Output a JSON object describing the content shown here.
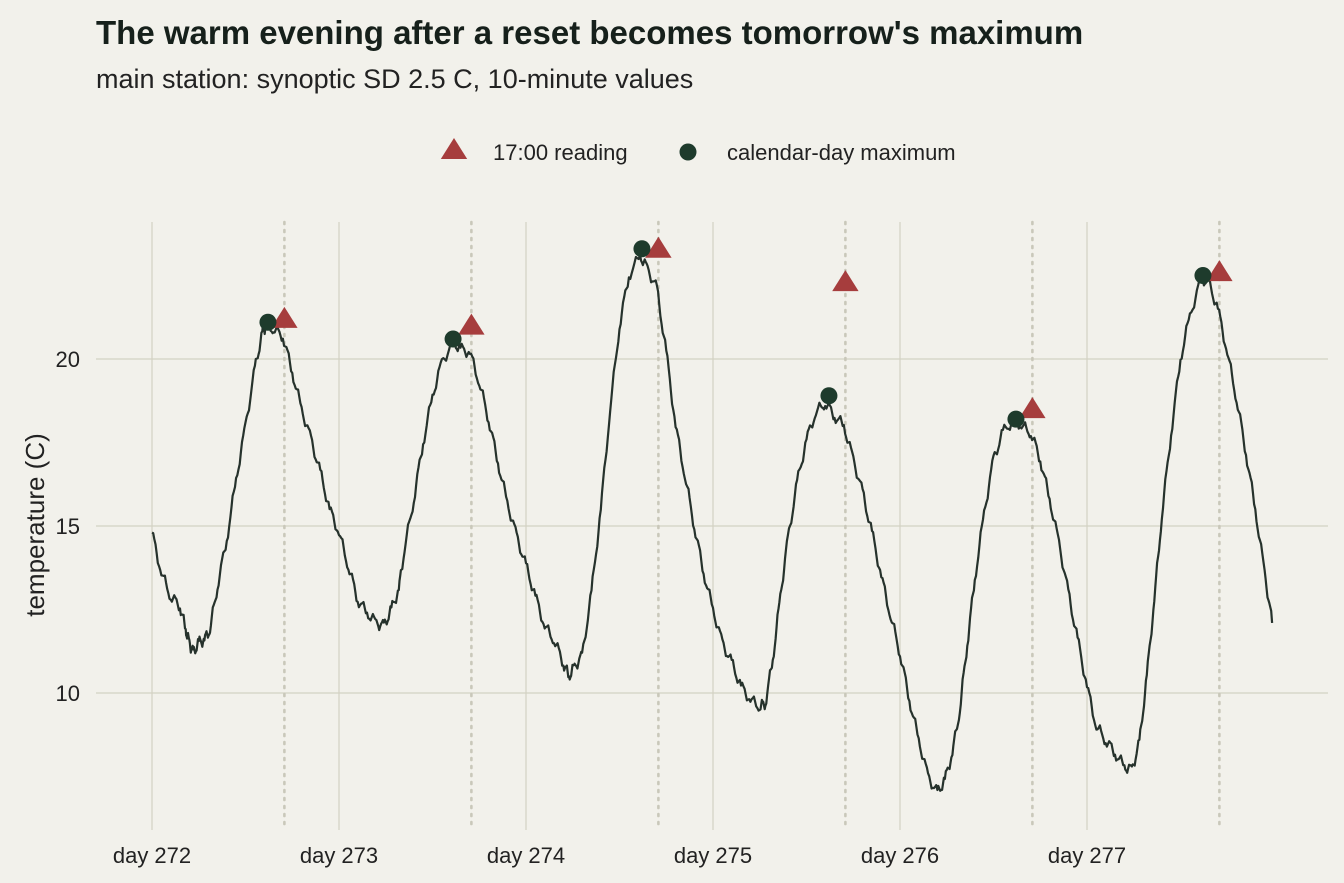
{
  "chart_data": {
    "type": "line",
    "title": "The warm evening after a reset becomes tomorrow's maximum",
    "subtitle": "main station: synoptic SD 2.5 C, 10-minute values",
    "xlabel": "",
    "ylabel": "temperature (C)",
    "xlim": [
      272,
      278.0
    ],
    "ylim": [
      6.0,
      24.0
    ],
    "x_ticks": [
      272,
      273,
      274,
      275,
      276,
      277
    ],
    "x_tick_labels": [
      "day 272",
      "day 273",
      "day 274",
      "day 275",
      "day 276",
      "day 277"
    ],
    "y_ticks": [
      10,
      15,
      20
    ],
    "y_tick_labels": [
      "10",
      "15",
      "20"
    ],
    "grid": true,
    "legend": {
      "position": "top-center",
      "entries": [
        "17:00 reading",
        "calendar-day maximum"
      ]
    },
    "reference_lines_x": [
      272.708,
      273.708,
      274.708,
      275.708,
      276.708,
      277.708
    ],
    "line_color": "#26322c",
    "series": [
      {
        "values": [
          [
            272.0,
            14.8
          ],
          [
            272.05,
            13.6
          ],
          [
            272.1,
            12.9
          ],
          [
            272.15,
            12.6
          ],
          [
            272.18,
            11.9
          ],
          [
            272.2,
            11.5
          ],
          [
            272.22,
            11.2
          ],
          [
            272.25,
            11.5
          ],
          [
            272.28,
            11.6
          ],
          [
            272.31,
            11.9
          ],
          [
            272.35,
            13.2
          ],
          [
            272.4,
            14.6
          ],
          [
            272.45,
            16.4
          ],
          [
            272.5,
            18.0
          ],
          [
            272.55,
            19.7
          ],
          [
            272.59,
            20.8
          ],
          [
            272.61,
            21.0
          ],
          [
            272.65,
            20.9
          ],
          [
            272.7,
            20.7
          ],
          [
            272.75,
            19.6
          ],
          [
            272.8,
            18.5
          ],
          [
            272.85,
            17.6
          ],
          [
            272.9,
            16.6
          ],
          [
            272.95,
            15.5
          ],
          [
            273.0,
            14.8
          ],
          [
            273.05,
            13.8
          ],
          [
            273.1,
            12.8
          ],
          [
            273.15,
            12.4
          ],
          [
            273.2,
            12.1
          ],
          [
            273.24,
            12.0
          ],
          [
            273.28,
            12.5
          ],
          [
            273.32,
            13.1
          ],
          [
            273.35,
            14.3
          ],
          [
            273.4,
            15.8
          ],
          [
            273.45,
            17.5
          ],
          [
            273.5,
            18.9
          ],
          [
            273.55,
            19.9
          ],
          [
            273.61,
            20.5
          ],
          [
            273.65,
            20.3
          ],
          [
            273.7,
            20.2
          ],
          [
            273.75,
            19.3
          ],
          [
            273.8,
            18.2
          ],
          [
            273.85,
            16.9
          ],
          [
            273.9,
            15.7
          ],
          [
            273.95,
            14.7
          ],
          [
            274.0,
            13.8
          ],
          [
            274.05,
            12.9
          ],
          [
            274.1,
            12.0
          ],
          [
            274.15,
            11.6
          ],
          [
            274.2,
            10.9
          ],
          [
            274.23,
            10.5
          ],
          [
            274.26,
            10.8
          ],
          [
            274.3,
            11.1
          ],
          [
            274.35,
            13.0
          ],
          [
            274.4,
            15.5
          ],
          [
            274.45,
            18.5
          ],
          [
            274.5,
            21.0
          ],
          [
            274.55,
            22.5
          ],
          [
            274.61,
            23.1
          ],
          [
            274.65,
            22.7
          ],
          [
            274.7,
            22.1
          ],
          [
            274.75,
            20.2
          ],
          [
            274.8,
            18.0
          ],
          [
            274.85,
            16.5
          ],
          [
            274.9,
            15.0
          ],
          [
            274.95,
            13.6
          ],
          [
            275.0,
            12.5
          ],
          [
            275.05,
            11.5
          ],
          [
            275.1,
            10.9
          ],
          [
            275.15,
            10.2
          ],
          [
            275.2,
            9.8
          ],
          [
            275.25,
            9.6
          ],
          [
            275.28,
            9.7
          ],
          [
            275.32,
            11.0
          ],
          [
            275.36,
            12.9
          ],
          [
            275.4,
            14.6
          ],
          [
            275.45,
            16.3
          ],
          [
            275.5,
            17.6
          ],
          [
            275.55,
            18.4
          ],
          [
            275.6,
            18.7
          ],
          [
            275.65,
            18.3
          ],
          [
            275.7,
            18.0
          ],
          [
            275.75,
            17.0
          ],
          [
            275.8,
            16.0
          ],
          [
            275.85,
            14.8
          ],
          [
            275.9,
            13.5
          ],
          [
            275.95,
            12.3
          ],
          [
            276.0,
            11.2
          ],
          [
            276.05,
            9.8
          ],
          [
            276.1,
            8.6
          ],
          [
            276.15,
            7.5
          ],
          [
            276.2,
            7.0
          ],
          [
            276.24,
            7.4
          ],
          [
            276.28,
            8.2
          ],
          [
            276.32,
            9.5
          ],
          [
            276.36,
            11.5
          ],
          [
            276.4,
            13.4
          ],
          [
            276.45,
            15.4
          ],
          [
            276.5,
            17.0
          ],
          [
            276.55,
            17.8
          ],
          [
            276.61,
            18.2
          ],
          [
            276.65,
            18.0
          ],
          [
            276.7,
            17.8
          ],
          [
            276.75,
            17.0
          ],
          [
            276.8,
            15.8
          ],
          [
            276.85,
            14.5
          ],
          [
            276.9,
            13.0
          ],
          [
            276.95,
            11.6
          ],
          [
            277.0,
            10.2
          ],
          [
            277.05,
            9.0
          ],
          [
            277.1,
            8.6
          ],
          [
            277.15,
            8.2
          ],
          [
            277.2,
            7.8
          ],
          [
            277.24,
            7.7
          ],
          [
            277.28,
            8.5
          ],
          [
            277.32,
            10.5
          ],
          [
            277.36,
            12.8
          ],
          [
            277.4,
            15.3
          ],
          [
            277.45,
            17.8
          ],
          [
            277.5,
            20.0
          ],
          [
            277.55,
            21.3
          ],
          [
            277.61,
            22.4
          ],
          [
            277.65,
            22.3
          ],
          [
            277.7,
            21.5
          ],
          [
            277.75,
            20.2
          ],
          [
            277.8,
            18.8
          ],
          [
            277.85,
            17.2
          ],
          [
            277.9,
            15.5
          ],
          [
            277.95,
            13.6
          ],
          [
            277.99,
            12.1
          ]
        ]
      },
      {
        "name": "17:00 reading",
        "color": "#a63d3d",
        "marker": "triangle",
        "values": [
          [
            272.708,
            21.2
          ],
          [
            273.708,
            21.0
          ],
          [
            274.708,
            23.3
          ],
          [
            275.708,
            22.3
          ],
          [
            276.708,
            18.5
          ],
          [
            277.708,
            22.6
          ]
        ]
      },
      {
        "name": "calendar-day maximum",
        "color": "#1e3b2c",
        "marker": "circle",
        "values": [
          [
            272.62,
            21.1
          ],
          [
            273.61,
            20.6
          ],
          [
            274.62,
            23.3
          ],
          [
            275.62,
            18.9
          ],
          [
            276.62,
            18.2
          ],
          [
            277.62,
            22.5
          ]
        ]
      }
    ]
  }
}
